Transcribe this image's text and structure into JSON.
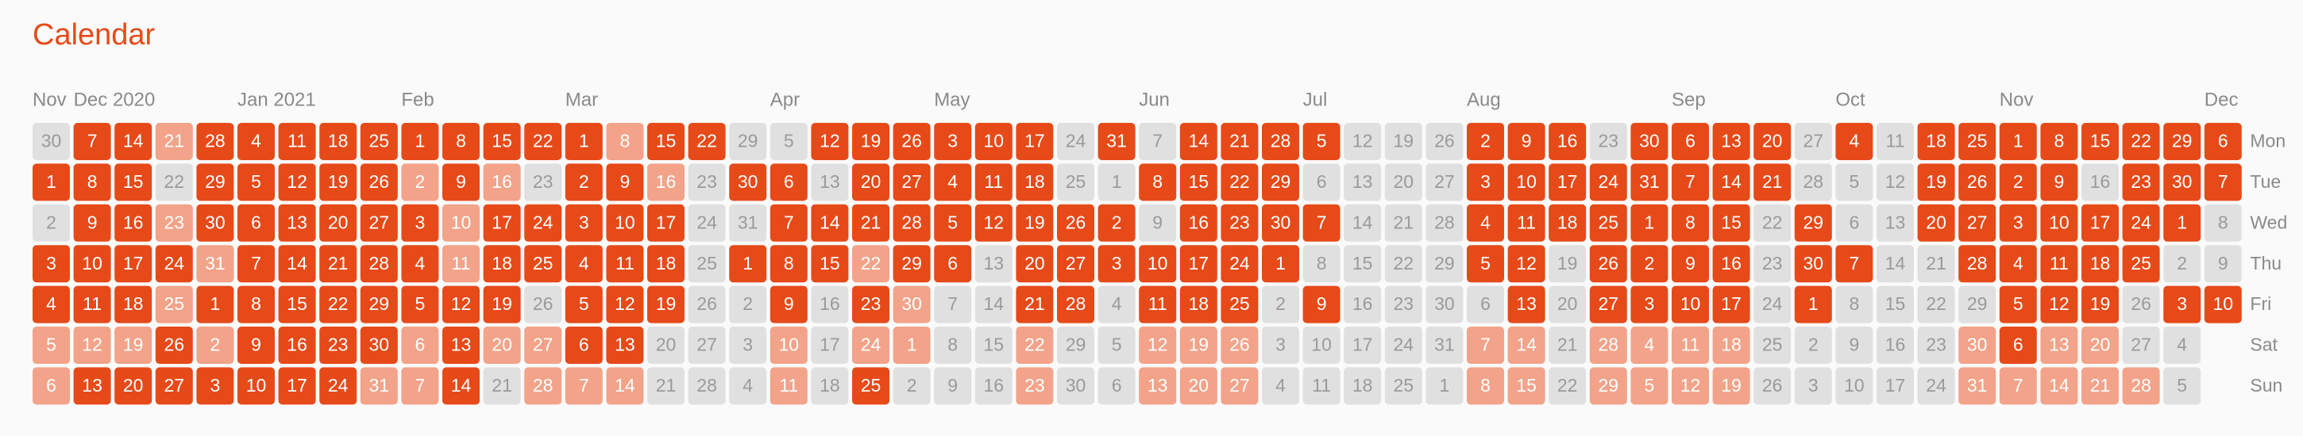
{
  "title": "Calendar",
  "colors": [
    "#e0e0e0",
    "#f2a389",
    "#e64a19"
  ],
  "month_labels": [
    "Nov",
    "Dec 2020",
    null,
    null,
    null,
    "Jan 2021",
    null,
    null,
    null,
    "Feb",
    null,
    null,
    null,
    "Mar",
    null,
    null,
    null,
    null,
    "Apr",
    null,
    null,
    null,
    "May",
    null,
    null,
    null,
    null,
    "Jun",
    null,
    null,
    null,
    "Jul",
    null,
    null,
    null,
    "Aug",
    null,
    null,
    null,
    null,
    "Sep",
    null,
    null,
    null,
    "Oct",
    null,
    null,
    null,
    "Nov",
    null,
    null,
    null,
    null,
    "Dec"
  ],
  "rows": [
    {
      "label": "Mon",
      "days": [
        30,
        7,
        14,
        21,
        28,
        4,
        11,
        18,
        25,
        1,
        8,
        15,
        22,
        1,
        8,
        15,
        22,
        29,
        5,
        12,
        19,
        26,
        3,
        10,
        17,
        24,
        31,
        7,
        14,
        21,
        28,
        5,
        12,
        19,
        26,
        2,
        9,
        16,
        23,
        30,
        6,
        13,
        20,
        27,
        4,
        11,
        18,
        25,
        1,
        8,
        15,
        22,
        29,
        6
      ],
      "levels": [
        0,
        2,
        2,
        1,
        2,
        2,
        2,
        2,
        2,
        2,
        2,
        2,
        2,
        2,
        1,
        2,
        2,
        0,
        0,
        2,
        2,
        2,
        2,
        2,
        2,
        0,
        2,
        0,
        2,
        2,
        2,
        2,
        0,
        0,
        0,
        2,
        2,
        2,
        0,
        2,
        2,
        2,
        2,
        0,
        2,
        0,
        2,
        2,
        2,
        2,
        2,
        2,
        2,
        2
      ]
    },
    {
      "label": "Tue",
      "days": [
        1,
        8,
        15,
        22,
        29,
        5,
        12,
        19,
        26,
        2,
        9,
        16,
        23,
        2,
        9,
        16,
        23,
        30,
        6,
        13,
        20,
        27,
        4,
        11,
        18,
        25,
        1,
        8,
        15,
        22,
        29,
        6,
        13,
        20,
        27,
        3,
        10,
        17,
        24,
        31,
        7,
        14,
        21,
        28,
        5,
        12,
        19,
        26,
        2,
        9,
        16,
        23,
        30,
        7
      ],
      "levels": [
        2,
        2,
        2,
        0,
        2,
        2,
        2,
        2,
        2,
        1,
        2,
        1,
        0,
        2,
        2,
        1,
        0,
        2,
        2,
        0,
        2,
        2,
        2,
        2,
        2,
        0,
        0,
        2,
        2,
        2,
        2,
        0,
        0,
        0,
        0,
        2,
        2,
        2,
        2,
        2,
        2,
        2,
        2,
        0,
        0,
        0,
        2,
        2,
        2,
        2,
        0,
        2,
        2,
        2
      ]
    },
    {
      "label": "Wed",
      "days": [
        2,
        9,
        16,
        23,
        30,
        6,
        13,
        20,
        27,
        3,
        10,
        17,
        24,
        3,
        10,
        17,
        24,
        31,
        7,
        14,
        21,
        28,
        5,
        12,
        19,
        26,
        2,
        9,
        16,
        23,
        30,
        7,
        14,
        21,
        28,
        4,
        11,
        18,
        25,
        1,
        8,
        15,
        22,
        29,
        6,
        13,
        20,
        27,
        3,
        10,
        17,
        24,
        1,
        8
      ],
      "levels": [
        0,
        2,
        2,
        1,
        2,
        2,
        2,
        2,
        2,
        2,
        1,
        2,
        2,
        2,
        2,
        2,
        0,
        0,
        2,
        2,
        2,
        2,
        2,
        2,
        2,
        2,
        2,
        0,
        2,
        2,
        2,
        2,
        0,
        0,
        0,
        2,
        2,
        2,
        2,
        2,
        2,
        2,
        0,
        2,
        0,
        0,
        2,
        2,
        2,
        2,
        2,
        2,
        2,
        0
      ]
    },
    {
      "label": "Thu",
      "days": [
        3,
        10,
        17,
        24,
        31,
        7,
        14,
        21,
        28,
        4,
        11,
        18,
        25,
        4,
        11,
        18,
        25,
        1,
        8,
        15,
        22,
        29,
        6,
        13,
        20,
        27,
        3,
        10,
        17,
        24,
        1,
        8,
        15,
        22,
        29,
        5,
        12,
        19,
        26,
        2,
        9,
        16,
        23,
        30,
        7,
        14,
        21,
        28,
        4,
        11,
        18,
        25,
        2,
        9
      ],
      "levels": [
        2,
        2,
        2,
        2,
        1,
        2,
        2,
        2,
        2,
        2,
        1,
        2,
        2,
        2,
        2,
        2,
        0,
        2,
        2,
        2,
        1,
        2,
        2,
        0,
        2,
        2,
        2,
        2,
        2,
        2,
        2,
        0,
        0,
        0,
        0,
        2,
        2,
        0,
        2,
        2,
        2,
        2,
        0,
        2,
        2,
        0,
        0,
        2,
        2,
        2,
        2,
        2,
        0,
        0
      ]
    },
    {
      "label": "Fri",
      "days": [
        4,
        11,
        18,
        25,
        1,
        8,
        15,
        22,
        29,
        5,
        12,
        19,
        26,
        5,
        12,
        19,
        26,
        2,
        9,
        16,
        23,
        30,
        7,
        14,
        21,
        28,
        4,
        11,
        18,
        25,
        2,
        9,
        16,
        23,
        30,
        6,
        13,
        20,
        27,
        3,
        10,
        17,
        24,
        1,
        8,
        15,
        22,
        29,
        5,
        12,
        19,
        26,
        3,
        10
      ],
      "levels": [
        2,
        2,
        2,
        1,
        2,
        2,
        2,
        2,
        2,
        2,
        2,
        2,
        0,
        2,
        2,
        2,
        0,
        0,
        2,
        0,
        2,
        1,
        0,
        0,
        2,
        2,
        0,
        2,
        2,
        2,
        0,
        2,
        0,
        0,
        0,
        0,
        2,
        0,
        2,
        2,
        2,
        2,
        0,
        2,
        0,
        0,
        0,
        0,
        2,
        2,
        2,
        0,
        2,
        2
      ]
    },
    {
      "label": "Sat",
      "days": [
        5,
        12,
        19,
        26,
        2,
        9,
        16,
        23,
        30,
        6,
        13,
        20,
        27,
        6,
        13,
        20,
        27,
        3,
        10,
        17,
        24,
        1,
        8,
        15,
        22,
        29,
        5,
        12,
        19,
        26,
        3,
        10,
        17,
        24,
        31,
        7,
        14,
        21,
        28,
        4,
        11,
        18,
        25,
        2,
        9,
        16,
        23,
        30,
        6,
        13,
        20,
        27,
        4
      ],
      "levels": [
        1,
        1,
        1,
        2,
        1,
        2,
        2,
        2,
        2,
        1,
        2,
        1,
        1,
        2,
        2,
        0,
        0,
        0,
        1,
        0,
        1,
        1,
        0,
        0,
        1,
        0,
        0,
        1,
        1,
        1,
        0,
        0,
        0,
        0,
        0,
        1,
        1,
        0,
        1,
        1,
        1,
        1,
        0,
        0,
        0,
        0,
        0,
        1,
        2,
        1,
        1,
        0,
        0
      ]
    },
    {
      "label": "Sun",
      "days": [
        6,
        13,
        20,
        27,
        3,
        10,
        17,
        24,
        31,
        7,
        14,
        21,
        28,
        7,
        14,
        21,
        28,
        4,
        11,
        18,
        25,
        2,
        9,
        16,
        23,
        30,
        6,
        13,
        20,
        27,
        4,
        11,
        18,
        25,
        1,
        8,
        15,
        22,
        29,
        5,
        12,
        19,
        26,
        3,
        10,
        17,
        24,
        31,
        7,
        14,
        21,
        28,
        5
      ],
      "levels": [
        1,
        2,
        2,
        2,
        2,
        2,
        2,
        2,
        1,
        1,
        2,
        0,
        1,
        1,
        1,
        0,
        0,
        0,
        1,
        0,
        2,
        0,
        0,
        0,
        1,
        0,
        0,
        1,
        1,
        1,
        0,
        0,
        0,
        0,
        0,
        1,
        1,
        0,
        1,
        1,
        1,
        1,
        0,
        0,
        0,
        0,
        0,
        1,
        1,
        1,
        1,
        1,
        0
      ]
    }
  ]
}
